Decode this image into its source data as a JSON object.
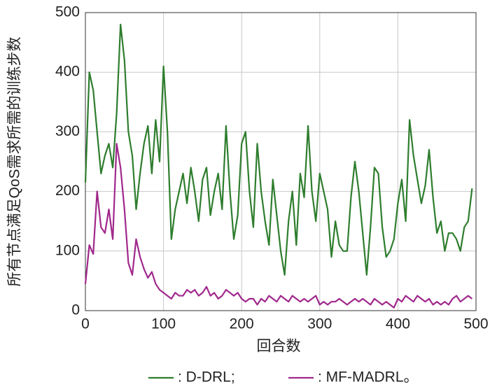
{
  "chart_data": {
    "type": "line",
    "x_label": "回合数",
    "y_label": "所有节点满足QoS需求所需的训练步数",
    "x": [
      0,
      5,
      10,
      15,
      20,
      25,
      30,
      35,
      40,
      45,
      50,
      55,
      60,
      65,
      70,
      75,
      80,
      85,
      90,
      95,
      100,
      105,
      110,
      115,
      120,
      125,
      130,
      135,
      140,
      145,
      150,
      155,
      160,
      165,
      170,
      175,
      180,
      185,
      190,
      195,
      200,
      205,
      210,
      215,
      220,
      225,
      230,
      235,
      240,
      245,
      250,
      255,
      260,
      265,
      270,
      275,
      280,
      285,
      290,
      295,
      300,
      305,
      310,
      315,
      320,
      325,
      330,
      335,
      340,
      345,
      350,
      355,
      360,
      365,
      370,
      375,
      380,
      385,
      390,
      395,
      400,
      405,
      410,
      415,
      420,
      425,
      430,
      435,
      440,
      445,
      450,
      455,
      460,
      465,
      470,
      475,
      480,
      485,
      490,
      495
    ],
    "series": [
      {
        "name": ": D-DRL;",
        "color": "#2e7d2e",
        "values": [
          215,
          400,
          370,
          300,
          230,
          260,
          280,
          240,
          330,
          480,
          420,
          300,
          260,
          170,
          230,
          280,
          310,
          230,
          320,
          250,
          410,
          300,
          120,
          170,
          200,
          230,
          180,
          240,
          200,
          150,
          220,
          240,
          160,
          200,
          230,
          170,
          310,
          200,
          120,
          160,
          280,
          300,
          200,
          140,
          280,
          200,
          150,
          110,
          220,
          160,
          100,
          60,
          150,
          200,
          110,
          230,
          190,
          310,
          200,
          150,
          230,
          200,
          170,
          90,
          150,
          110,
          100,
          100,
          190,
          250,
          200,
          130,
          60,
          140,
          240,
          230,
          140,
          90,
          100,
          120,
          180,
          220,
          150,
          320,
          260,
          220,
          180,
          210,
          270,
          190,
          130,
          150,
          100,
          130,
          130,
          120,
          100,
          140,
          150,
          205
        ]
      },
      {
        "name": ": MF-MADRL。",
        "color": "#a0288c",
        "values": [
          45,
          110,
          95,
          200,
          140,
          130,
          170,
          120,
          280,
          240,
          170,
          80,
          60,
          120,
          90,
          70,
          55,
          65,
          45,
          35,
          30,
          25,
          20,
          30,
          25,
          25,
          35,
          30,
          35,
          25,
          30,
          40,
          25,
          30,
          20,
          25,
          35,
          30,
          25,
          30,
          20,
          15,
          20,
          20,
          10,
          20,
          15,
          25,
          20,
          15,
          25,
          20,
          15,
          25,
          20,
          15,
          20,
          15,
          20,
          25,
          10,
          15,
          10,
          15,
          15,
          20,
          15,
          10,
          15,
          20,
          15,
          20,
          15,
          10,
          20,
          15,
          10,
          15,
          10,
          5,
          20,
          15,
          25,
          20,
          15,
          25,
          20,
          15,
          20,
          10,
          15,
          10,
          15,
          10,
          20,
          25,
          15,
          20,
          25,
          20
        ]
      }
    ],
    "xlim": [
      0,
      500
    ],
    "xticks": [
      0,
      100,
      200,
      300,
      400,
      500
    ],
    "ylim": [
      0,
      500
    ],
    "yticks": [
      0,
      100,
      200,
      300,
      400,
      500
    ],
    "grid": true
  }
}
